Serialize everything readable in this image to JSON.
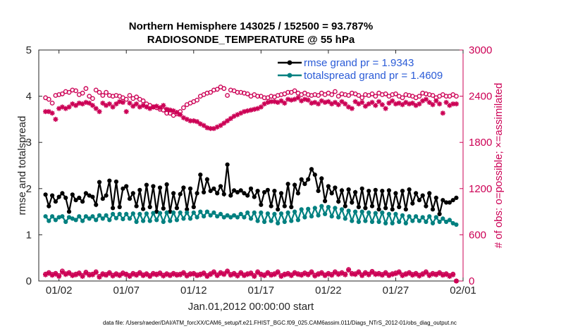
{
  "chart_data": {
    "type": "line",
    "title": [
      "Northern Hemisphere 143025 / 152500 = 93.787%",
      "RADIOSONDE_TEMPERATURE @ 55 hPa"
    ],
    "xlabel": "Jan.01,2012 00:00:00 start",
    "ylabel_left": "rmse and totalspread",
    "ylabel_right": "# of obs: o=possible; ×=assimilated",
    "ylim_left": [
      0,
      5
    ],
    "ylim_right": [
      0,
      3000
    ],
    "xlim": [
      0.5,
      32.0
    ],
    "x_tick_values": [
      2,
      7,
      12,
      17,
      22,
      27,
      32
    ],
    "x_tick_labels": [
      "01/02",
      "01/07",
      "01/12",
      "01/17",
      "01/22",
      "01/27",
      "02/01"
    ],
    "y_left_ticks": [
      0,
      1,
      2,
      3,
      4,
      5
    ],
    "y_right_ticks": [
      0,
      600,
      1200,
      1800,
      2400,
      3000
    ],
    "legend": [
      {
        "label": "rmse grand pr = 1.9343",
        "color": "#000000"
      },
      {
        "label": "totalspread grand pr = 1.4609",
        "color": "#008080"
      }
    ],
    "x_start": 1.0,
    "x_step": 0.25,
    "series": [
      {
        "name": "rmse",
        "axis": "left",
        "color": "#000000",
        "values": [
          1.87,
          1.62,
          1.85,
          1.72,
          1.82,
          1.9,
          1.8,
          1.5,
          1.87,
          1.75,
          1.8,
          1.72,
          1.9,
          1.85,
          1.82,
          1.65,
          2.14,
          1.78,
          1.85,
          2.17,
          1.58,
          2.15,
          1.6,
          2.0,
          2.05,
          1.78,
          1.9,
          1.62,
          1.97,
          1.56,
          2.08,
          1.6,
          2.05,
          1.5,
          2.02,
          1.57,
          2.09,
          1.5,
          1.9,
          1.58,
          1.88,
          2.02,
          1.55,
          2.0,
          1.6,
          1.9,
          2.3,
          1.92,
          2.2,
          1.95,
          2.0,
          1.9,
          2.05,
          1.88,
          2.52,
          1.85,
          1.96,
          1.92,
          1.96,
          1.9,
          1.85,
          2.0,
          1.82,
          1.95,
          1.65,
          1.92,
          1.97,
          1.62,
          1.95,
          1.55,
          1.9,
          1.62,
          2.1,
          1.6,
          2.08,
          1.9,
          2.2,
          2.1,
          2.2,
          2.42,
          2.3,
          1.95,
          2.22,
          1.73,
          2.05,
          1.9,
          2.02,
          1.72,
          1.96,
          1.62,
          1.98,
          1.7,
          1.92,
          1.6,
          2.0,
          1.58,
          1.95,
          1.62,
          1.97,
          1.55,
          1.95,
          1.58,
          1.96,
          1.55,
          1.9,
          1.6,
          1.95,
          1.55,
          1.98,
          1.68,
          1.9,
          1.75,
          1.85,
          1.62,
          1.9,
          1.55,
          1.8,
          1.45,
          1.75,
          1.7,
          1.7,
          1.75,
          1.8
        ]
      },
      {
        "name": "totalspread",
        "axis": "left",
        "color": "#008080",
        "values": [
          1.4,
          1.3,
          1.4,
          1.32,
          1.38,
          1.4,
          1.28,
          1.38,
          1.35,
          1.32,
          1.4,
          1.3,
          1.4,
          1.35,
          1.4,
          1.32,
          1.42,
          1.35,
          1.42,
          1.32,
          1.45,
          1.36,
          1.45,
          1.34,
          1.45,
          1.35,
          1.46,
          1.28,
          1.45,
          1.3,
          1.46,
          1.3,
          1.47,
          1.32,
          1.47,
          1.28,
          1.48,
          1.3,
          1.48,
          1.32,
          1.48,
          1.35,
          1.48,
          1.35,
          1.48,
          1.38,
          1.5,
          1.4,
          1.5,
          1.42,
          1.48,
          1.4,
          1.45,
          1.38,
          1.42,
          1.38,
          1.42,
          1.38,
          1.45,
          1.38,
          1.48,
          1.35,
          1.48,
          1.3,
          1.48,
          1.28,
          1.46,
          1.3,
          1.45,
          1.25,
          1.46,
          1.28,
          1.48,
          1.3,
          1.5,
          1.32,
          1.55,
          1.38,
          1.56,
          1.4,
          1.58,
          1.42,
          1.62,
          1.45,
          1.6,
          1.4,
          1.58,
          1.38,
          1.55,
          1.35,
          1.52,
          1.3,
          1.5,
          1.28,
          1.5,
          1.3,
          1.48,
          1.28,
          1.47,
          1.28,
          1.48,
          1.25,
          1.45,
          1.25,
          1.45,
          1.28,
          1.42,
          1.25,
          1.4,
          1.3,
          1.4,
          1.3,
          1.38,
          1.28,
          1.4,
          1.25,
          1.38,
          1.28,
          1.35,
          1.28,
          1.32,
          1.25,
          1.22
        ]
      },
      {
        "name": "possible",
        "axis": "right",
        "color": "#cc0055",
        "marker": "circle",
        "values": [
          2380,
          2360,
          2310,
          2410,
          2420,
          2430,
          2460,
          2450,
          2480,
          2470,
          2420,
          2440,
          2500,
          2400,
          2370,
          2480,
          2450,
          2410,
          2450,
          2410,
          2400,
          2410,
          2400,
          2380,
          2360,
          2410,
          2370,
          2390,
          2360,
          2340,
          2300,
          2280,
          2260,
          2250,
          2230,
          2220,
          2180,
          2180,
          2150,
          2170,
          2200,
          2250,
          2290,
          2310,
          2330,
          2350,
          2400,
          2420,
          2440,
          2450,
          2480,
          2490,
          2520,
          2500,
          2410,
          2480,
          2470,
          2450,
          2450,
          2440,
          2430,
          2400,
          2420,
          2400,
          2400,
          2380,
          2380,
          2400,
          2390,
          2410,
          2420,
          2430,
          2450,
          2450,
          2470,
          2440,
          2420,
          2440,
          2420,
          2410,
          2420,
          2410,
          2440,
          2420,
          2440,
          2420,
          2460,
          2400,
          2430,
          2420,
          2410,
          2440,
          2430,
          2410,
          2380,
          2420,
          2410,
          2430,
          2400,
          2440,
          2420,
          2430,
          2400,
          2420,
          2430,
          2400,
          2380,
          2420,
          2410,
          2400,
          2380,
          2400,
          2440,
          2430,
          2420,
          2410,
          2380,
          2400,
          2420,
          2400,
          2400,
          2420,
          2400
        ]
      },
      {
        "name": "assimilated",
        "axis": "right",
        "color": "#cc0055",
        "marker": "asterisk",
        "values": [
          2200,
          2200,
          2180,
          2100,
          2240,
          2260,
          2240,
          2260,
          2300,
          2280,
          2310,
          2300,
          2320,
          2310,
          2280,
          2240,
          2200,
          2310,
          2280,
          2300,
          2260,
          2300,
          2330,
          2320,
          2200,
          2310,
          2270,
          2300,
          2260,
          2280,
          2260,
          2240,
          2260,
          2270,
          2250,
          2280,
          2230,
          2220,
          2210,
          2190,
          2160,
          2120,
          2100,
          2080,
          2080,
          2070,
          2040,
          2020,
          1990,
          1980,
          1980,
          2000,
          2020,
          2050,
          2080,
          2110,
          2140,
          2160,
          2180,
          2200,
          2210,
          2220,
          2230,
          2240,
          2260,
          2300,
          2320,
          2330,
          2330,
          2320,
          2340,
          2310,
          2360,
          2350,
          2360,
          2380,
          2340,
          2360,
          2350,
          2310,
          2320,
          2300,
          2340,
          2320,
          2330,
          2300,
          2320,
          2290,
          2330,
          2300,
          2260,
          2240,
          2330,
          2300,
          2320,
          2270,
          2300,
          2320,
          2280,
          2330,
          2290,
          2240,
          2310,
          2340,
          2300,
          2310,
          2290,
          2320,
          2300,
          2310,
          2280,
          2300,
          2340,
          2360,
          2320,
          2290,
          2340,
          2300,
          2180,
          2320,
          2280,
          2300,
          2300
        ]
      },
      {
        "name": "possible_low",
        "axis": "right",
        "color": "#cc0055",
        "marker": "circle",
        "values": [
          90,
          110,
          85,
          100,
          70,
          130,
          95,
          110,
          80,
          90,
          105,
          70,
          115,
          85,
          90,
          120,
          60,
          95,
          85,
          110,
          75,
          95,
          80,
          105,
          90,
          70,
          100,
          85,
          110,
          80,
          95,
          70,
          100,
          90,
          105,
          75,
          95,
          80,
          100,
          85,
          90,
          110,
          75,
          95,
          100,
          80,
          90,
          105,
          70,
          95,
          120,
          80,
          110,
          95,
          130,
          85,
          100,
          75,
          110,
          80,
          95,
          105,
          70,
          120,
          90,
          80,
          110,
          85,
          95,
          120,
          70,
          90,
          100,
          80,
          110,
          95,
          85,
          105,
          90,
          120,
          75,
          95,
          110,
          80,
          100,
          85,
          120,
          95,
          110,
          90,
          150,
          100,
          95,
          120,
          80,
          110,
          90,
          125,
          95,
          100,
          85,
          110,
          80,
          95,
          105,
          120,
          80,
          95,
          110,
          85,
          100,
          75,
          95,
          120,
          80,
          100,
          90,
          110,
          85,
          95,
          70,
          90,
          0
        ]
      },
      {
        "name": "assimilated_low",
        "axis": "right",
        "color": "#cc0055",
        "marker": "asterisk",
        "values": [
          80,
          100,
          75,
          90,
          60,
          115,
          85,
          100,
          70,
          80,
          95,
          60,
          105,
          75,
          80,
          110,
          50,
          85,
          75,
          100,
          65,
          85,
          70,
          95,
          80,
          60,
          90,
          75,
          100,
          70,
          85,
          60,
          90,
          80,
          95,
          65,
          85,
          70,
          90,
          75,
          80,
          100,
          65,
          85,
          90,
          70,
          80,
          95,
          60,
          85,
          110,
          70,
          100,
          85,
          120,
          75,
          90,
          65,
          100,
          70,
          85,
          95,
          60,
          110,
          80,
          70,
          100,
          75,
          85,
          110,
          60,
          80,
          90,
          70,
          100,
          85,
          75,
          95,
          80,
          110,
          65,
          85,
          100,
          70,
          90,
          75,
          110,
          85,
          100,
          80,
          140,
          90,
          85,
          110,
          70,
          100,
          80,
          115,
          85,
          90,
          75,
          100,
          70,
          85,
          95,
          110,
          70,
          85,
          100,
          75,
          90,
          65,
          85,
          110,
          70,
          90,
          80,
          100,
          75,
          85,
          60,
          80,
          0
        ]
      }
    ]
  },
  "footer_text": "data file: /Users/raeder/DAI/ATM_forcXX/CAM6_setup/f.e21.FHIST_BGC.f09_025.CAM6assim.011/Diags_NTrS_2012-01/obs_diag_output.nc"
}
